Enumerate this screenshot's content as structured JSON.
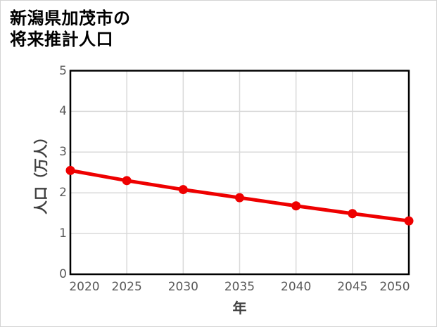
{
  "title": {
    "lines": [
      "新潟県加茂市の",
      "将来推計人口"
    ]
  },
  "chart_data": {
    "type": "line",
    "title": "新潟県加茂市の将来推計人口",
    "x": [
      2020,
      2025,
      2030,
      2035,
      2040,
      2045,
      2050
    ],
    "series": [
      {
        "name": "将来推計人口",
        "values": [
          2.55,
          2.3,
          2.08,
          1.88,
          1.68,
          1.49,
          1.31
        ]
      }
    ],
    "xlabel": "年",
    "ylabel": "人口（万人）",
    "xlim": [
      2020,
      2050
    ],
    "ylim": [
      0,
      5
    ],
    "xticks": [
      "2020",
      "2025",
      "2030",
      "2035",
      "2040",
      "2045",
      "2050"
    ],
    "yticks": [
      "0",
      "1",
      "2",
      "3",
      "4",
      "5"
    ],
    "grid": true,
    "legend_position": "none",
    "line_color": "#ee0000",
    "marker": "circle",
    "gridline_color": "#d9d9d9",
    "spine_color": "#000000",
    "tick_label_color": "#595959",
    "axis_title_color": "#404040"
  }
}
